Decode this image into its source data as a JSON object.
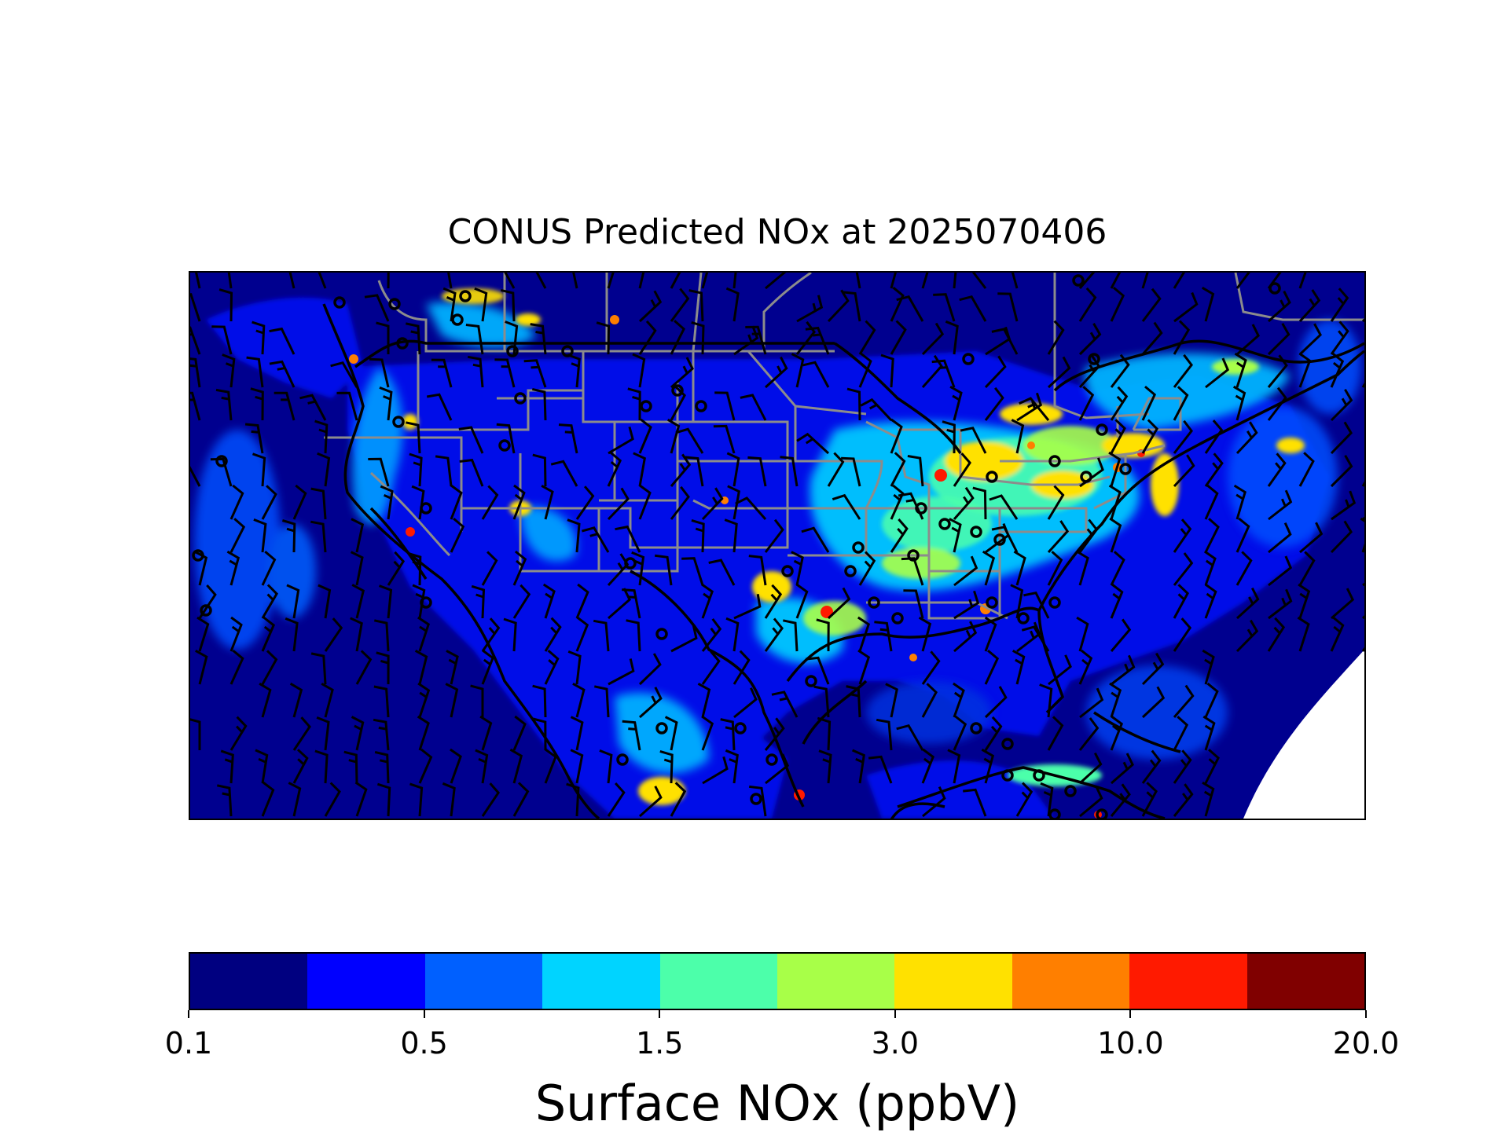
{
  "title": "CONUS Predicted NOx at 2025070406",
  "colorbar": {
    "label": "Surface NOx (ppbV)",
    "colors": [
      "#000080",
      "#0000ff",
      "#0060ff",
      "#00d4ff",
      "#4cffaa",
      "#a8ff48",
      "#ffe100",
      "#ff7f00",
      "#ff1a00",
      "#800000"
    ],
    "tick_labels": [
      "0.1",
      "0.5",
      "1.5",
      "3.0",
      "10.0",
      "20.0"
    ]
  },
  "map": {
    "field": "Surface NOx",
    "units": "ppbV",
    "overlays": [
      "state-boundaries",
      "country-boundaries",
      "coastlines",
      "wind-barbs"
    ]
  }
}
